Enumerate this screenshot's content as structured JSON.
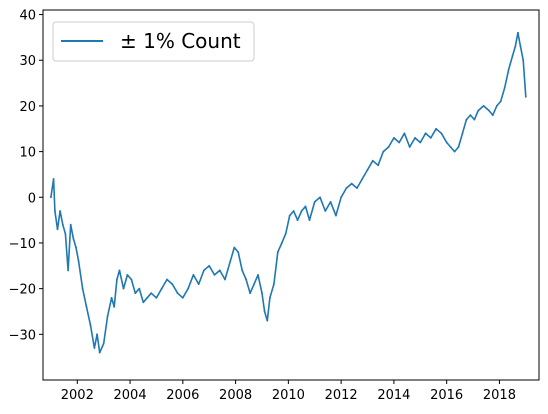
{
  "chart_data": {
    "type": "line",
    "title": "",
    "xlabel": "",
    "ylabel": "",
    "xlim": [
      2000.7,
      2019.5
    ],
    "ylim": [
      -40,
      41
    ],
    "x_ticks": [
      2002,
      2004,
      2006,
      2008,
      2010,
      2012,
      2014,
      2016,
      2018
    ],
    "x_tick_labels": [
      "2002",
      "2004",
      "2006",
      "2008",
      "2010",
      "2012",
      "2014",
      "2016",
      "2018"
    ],
    "y_ticks": [
      -30,
      -20,
      -10,
      0,
      10,
      20,
      30,
      40
    ],
    "y_tick_labels": [
      "−30",
      "−20",
      "−10",
      "0",
      "10",
      "20",
      "30",
      "40"
    ],
    "grid": false,
    "legend_position": "upper-left",
    "series": [
      {
        "name": "± 1% Count",
        "color": "#1f77b4",
        "x": [
          2001.0,
          2001.1,
          2001.15,
          2001.25,
          2001.35,
          2001.45,
          2001.55,
          2001.65,
          2001.75,
          2001.85,
          2001.95,
          2002.05,
          2002.2,
          2002.35,
          2002.5,
          2002.65,
          2002.75,
          2002.85,
          2003.0,
          2003.15,
          2003.3,
          2003.4,
          2003.5,
          2003.6,
          2003.75,
          2003.9,
          2004.05,
          2004.2,
          2004.35,
          2004.5,
          2004.65,
          2004.8,
          2005.0,
          2005.2,
          2005.4,
          2005.6,
          2005.8,
          2006.0,
          2006.2,
          2006.4,
          2006.6,
          2006.8,
          2007.0,
          2007.2,
          2007.4,
          2007.6,
          2007.8,
          2007.95,
          2008.1,
          2008.25,
          2008.4,
          2008.55,
          2008.7,
          2008.85,
          2009.0,
          2009.1,
          2009.2,
          2009.3,
          2009.45,
          2009.6,
          2009.75,
          2009.9,
          2010.05,
          2010.2,
          2010.35,
          2010.5,
          2010.65,
          2010.8,
          2011.0,
          2011.2,
          2011.4,
          2011.6,
          2011.8,
          2012.0,
          2012.2,
          2012.4,
          2012.6,
          2012.8,
          2013.0,
          2013.2,
          2013.4,
          2013.6,
          2013.8,
          2014.0,
          2014.2,
          2014.4,
          2014.6,
          2014.8,
          2015.0,
          2015.2,
          2015.4,
          2015.6,
          2015.8,
          2016.0,
          2016.15,
          2016.3,
          2016.45,
          2016.6,
          2016.75,
          2016.9,
          2017.05,
          2017.2,
          2017.4,
          2017.6,
          2017.75,
          2017.9,
          2018.05,
          2018.2,
          2018.35,
          2018.5,
          2018.6,
          2018.7,
          2018.8,
          2018.9,
          2019.0
        ],
        "y": [
          0,
          4,
          -3,
          -7,
          -3,
          -6,
          -8,
          -16,
          -6,
          -9,
          -11,
          -14,
          -20,
          -24,
          -28,
          -33,
          -30,
          -34,
          -32,
          -26,
          -22,
          -24,
          -18,
          -16,
          -20,
          -17,
          -18,
          -21,
          -20,
          -23,
          -22,
          -21,
          -22,
          -20,
          -18,
          -19,
          -21,
          -22,
          -20,
          -17,
          -19,
          -16,
          -15,
          -17,
          -16,
          -18,
          -14,
          -11,
          -12,
          -16,
          -18,
          -21,
          -19,
          -17,
          -21,
          -25,
          -27,
          -22,
          -19,
          -12,
          -10,
          -8,
          -4,
          -3,
          -5,
          -3,
          -2,
          -5,
          -1,
          0,
          -3,
          -1,
          -4,
          0,
          2,
          3,
          2,
          4,
          6,
          8,
          7,
          10,
          11,
          13,
          12,
          14,
          11,
          13,
          12,
          14,
          13,
          15,
          14,
          12,
          11,
          10,
          11,
          14,
          17,
          18,
          17,
          19,
          20,
          19,
          18,
          20,
          21,
          24,
          28,
          31,
          33,
          36,
          33,
          30,
          22
        ]
      }
    ]
  }
}
